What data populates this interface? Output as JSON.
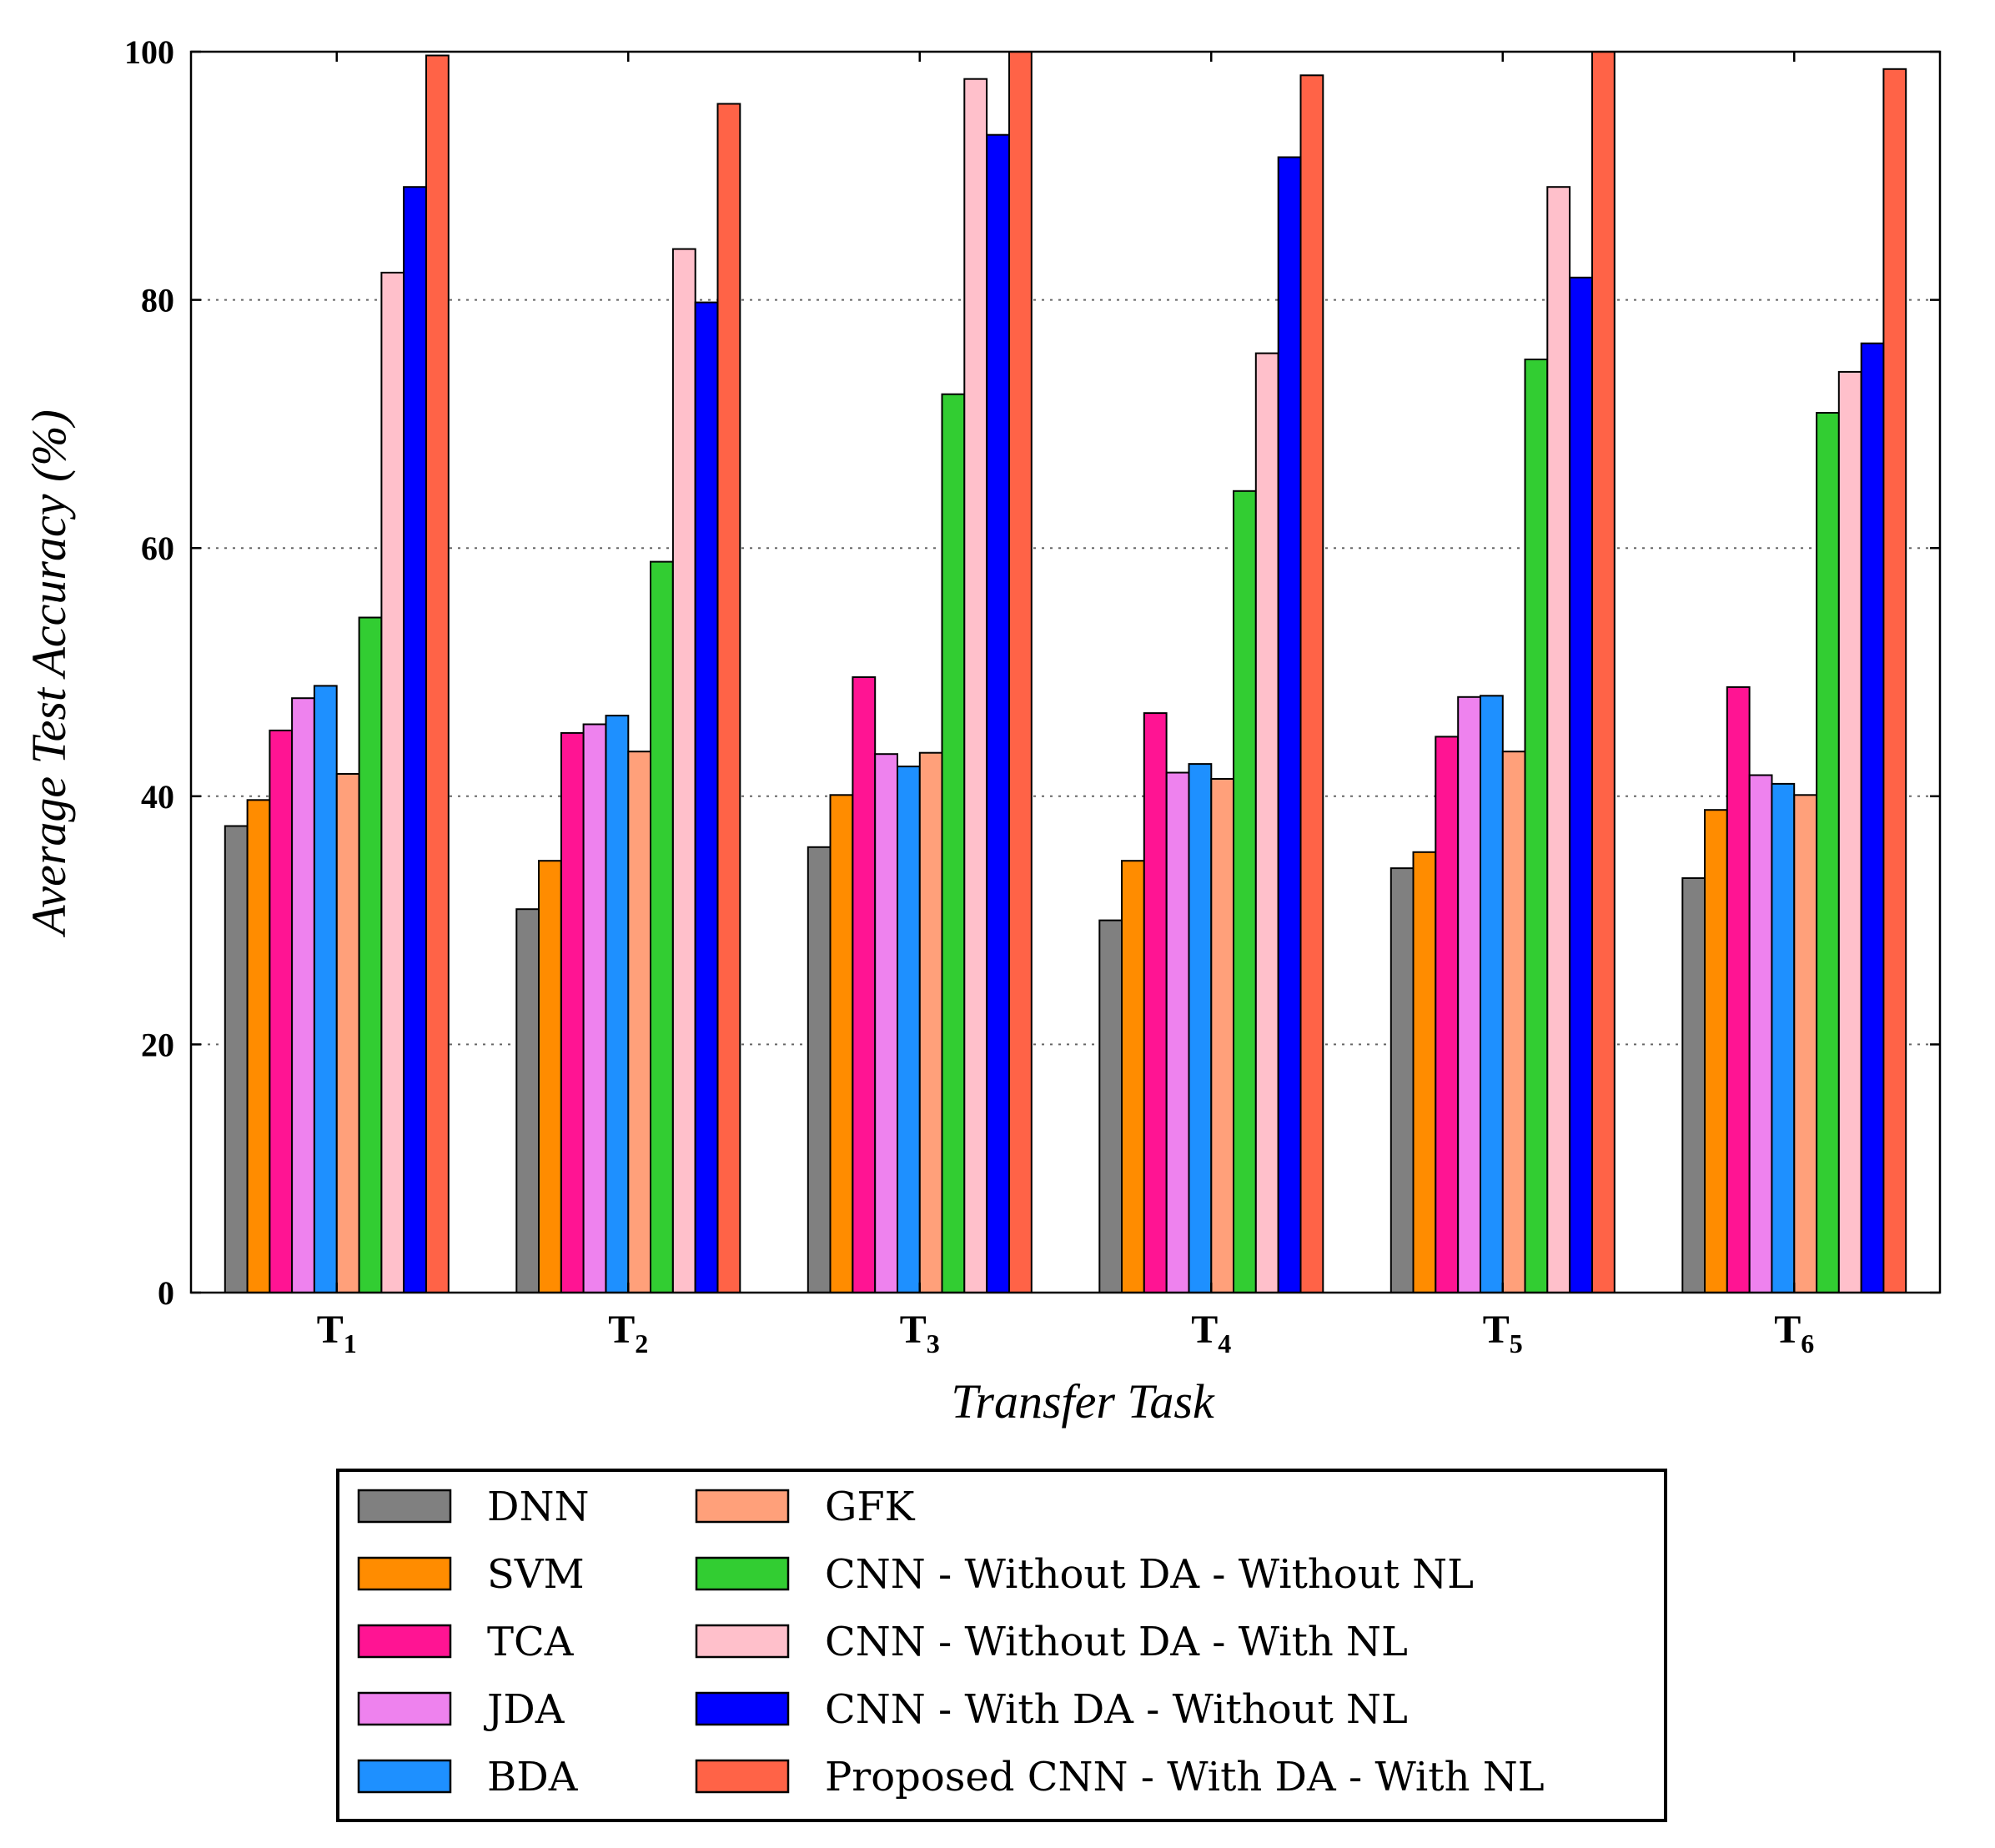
{
  "chart_data": {
    "type": "bar",
    "title": "",
    "xlabel": "Transfer Task",
    "ylabel": "Average Test Accuracy (%)",
    "ylim": [
      0,
      100
    ],
    "yticks": [
      0,
      20,
      40,
      60,
      80,
      100
    ],
    "grid": true,
    "legend_position": "bottom",
    "categories": [
      {
        "base": "T",
        "sub": "1"
      },
      {
        "base": "T",
        "sub": "2"
      },
      {
        "base": "T",
        "sub": "3"
      },
      {
        "base": "T",
        "sub": "4"
      },
      {
        "base": "T",
        "sub": "5"
      },
      {
        "base": "T",
        "sub": "6"
      }
    ],
    "series": [
      {
        "name": "DNN",
        "color": "#808080",
        "values": [
          37.6,
          30.9,
          35.9,
          30.0,
          34.2,
          33.4
        ]
      },
      {
        "name": "SVM",
        "color": "#ff8c00",
        "values": [
          39.7,
          34.8,
          40.1,
          34.8,
          35.5,
          38.9
        ]
      },
      {
        "name": "TCA",
        "color": "#ff1493",
        "values": [
          45.3,
          45.1,
          49.6,
          46.7,
          44.8,
          48.8
        ]
      },
      {
        "name": "JDA",
        "color": "#ee82ee",
        "values": [
          47.9,
          45.8,
          43.4,
          41.9,
          48.0,
          41.7
        ]
      },
      {
        "name": "BDA",
        "color": "#1e90ff",
        "values": [
          48.9,
          46.5,
          42.4,
          42.6,
          48.1,
          41.0
        ]
      },
      {
        "name": "GFK",
        "color": "#ffa07a",
        "values": [
          41.8,
          43.6,
          43.5,
          41.4,
          43.6,
          40.1
        ]
      },
      {
        "name": "CNN - Without DA - Without NL",
        "color": "#32cd32",
        "values": [
          54.4,
          58.9,
          72.4,
          64.6,
          75.2,
          70.9
        ]
      },
      {
        "name": "CNN - Without DA - With NL",
        "color": "#ffc0cb",
        "values": [
          82.2,
          84.1,
          97.8,
          75.7,
          89.1,
          74.2
        ]
      },
      {
        "name": "CNN - With DA - Without NL",
        "color": "#0000ff",
        "values": [
          89.1,
          79.8,
          93.3,
          91.5,
          81.8,
          76.5
        ]
      },
      {
        "name": "Proposed CNN - With DA - With NL",
        "color": "#ff6347",
        "values": [
          99.7,
          95.8,
          100,
          98.1,
          100,
          98.6
        ]
      }
    ]
  }
}
